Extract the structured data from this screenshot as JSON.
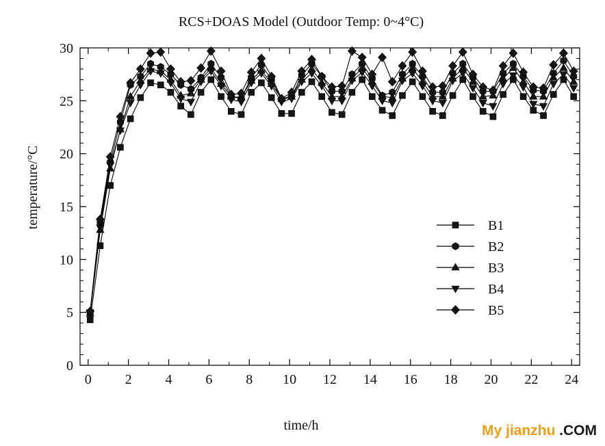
{
  "chart_data": {
    "type": "line",
    "title": "RCS+DOAS Model (Outdoor Temp: 0~4°C)",
    "xlabel": "time/h",
    "ylabel": "temperature/°C",
    "xlim": [
      -0.4,
      24.4
    ],
    "ylim": [
      0,
      30
    ],
    "xticks": [
      0,
      2,
      4,
      6,
      8,
      10,
      12,
      14,
      16,
      18,
      20,
      22,
      24
    ],
    "yticks": [
      0,
      5,
      10,
      15,
      20,
      25,
      30
    ],
    "legend_position": "center-right",
    "x": [
      0.1,
      0.6,
      1.1,
      1.6,
      2.1,
      2.6,
      3.1,
      3.6,
      4.1,
      4.6,
      5.1,
      5.6,
      6.1,
      6.6,
      7.1,
      7.6,
      8.1,
      8.6,
      9.1,
      9.6,
      10.1,
      10.6,
      11.1,
      11.6,
      12.1,
      12.6,
      13.1,
      13.6,
      14.1,
      14.6,
      15.1,
      15.6,
      16.1,
      16.6,
      17.1,
      17.6,
      18.1,
      18.6,
      19.1,
      19.6,
      20.1,
      20.6,
      21.1,
      21.6,
      22.1,
      22.6,
      23.1,
      23.6,
      24.1
    ],
    "series": [
      {
        "name": "B1",
        "marker": "square",
        "values": [
          4.3,
          11.3,
          17.0,
          20.6,
          23.3,
          25.3,
          26.7,
          26.5,
          25.8,
          24.5,
          23.7,
          25.8,
          27.0,
          25.4,
          24.0,
          23.7,
          25.8,
          26.7,
          25.3,
          23.8,
          23.8,
          25.8,
          26.8,
          25.4,
          23.9,
          23.7,
          25.8,
          27.0,
          25.4,
          24.1,
          23.6,
          25.5,
          26.8,
          25.4,
          24.0,
          23.6,
          25.5,
          27.0,
          25.4,
          24.0,
          23.5,
          25.6,
          27.0,
          25.4,
          24.1,
          23.6,
          25.6,
          27.0,
          25.4
        ]
      },
      {
        "name": "B2",
        "marker": "hexagon",
        "values": [
          5.0,
          13.5,
          19.2,
          23.0,
          26.5,
          27.3,
          28.5,
          28.2,
          27.5,
          26.5,
          26.1,
          27.2,
          28.5,
          27.2,
          25.4,
          25.2,
          27.2,
          28.4,
          27.0,
          25.1,
          25.4,
          27.4,
          28.5,
          27.3,
          25.9,
          25.9,
          27.5,
          28.5,
          27.1,
          25.5,
          25.8,
          27.5,
          28.5,
          27.3,
          25.8,
          25.8,
          27.6,
          28.5,
          27.2,
          25.9,
          25.9,
          27.6,
          28.5,
          27.3,
          26.0,
          25.9,
          27.6,
          28.8,
          27.3
        ]
      },
      {
        "name": "B3",
        "marker": "triangle-up",
        "values": [
          4.9,
          12.8,
          18.6,
          22.3,
          25.4,
          26.9,
          28.0,
          27.8,
          27.0,
          25.5,
          25.7,
          27.0,
          28.1,
          26.6,
          25.4,
          25.3,
          26.9,
          27.9,
          26.6,
          25.2,
          25.4,
          27.0,
          28.0,
          26.7,
          25.4,
          25.4,
          27.1,
          28.1,
          26.8,
          25.4,
          25.3,
          27.1,
          28.1,
          26.8,
          25.4,
          25.4,
          27.1,
          28.1,
          26.8,
          25.4,
          25.5,
          27.1,
          28.1,
          26.8,
          25.4,
          25.4,
          27.2,
          28.1,
          26.8
        ]
      },
      {
        "name": "B4",
        "marker": "triangle-down",
        "values": [
          5.0,
          13.0,
          18.9,
          22.2,
          24.8,
          26.5,
          27.8,
          27.6,
          26.7,
          25.2,
          24.9,
          26.8,
          27.8,
          26.4,
          25.1,
          24.9,
          26.7,
          27.6,
          26.4,
          24.9,
          25.2,
          26.8,
          27.6,
          26.4,
          25.0,
          25.0,
          26.9,
          27.7,
          26.4,
          25.0,
          24.8,
          26.9,
          27.6,
          26.4,
          25.0,
          24.8,
          26.9,
          27.6,
          26.2,
          24.8,
          24.5,
          26.6,
          27.4,
          26.3,
          24.7,
          24.5,
          26.6,
          27.5,
          26.2
        ]
      },
      {
        "name": "B5",
        "marker": "diamond",
        "values": [
          5.1,
          13.8,
          19.7,
          23.5,
          26.7,
          28.0,
          29.5,
          29.6,
          28.0,
          26.8,
          26.9,
          28.1,
          29.7,
          27.8,
          25.6,
          25.7,
          27.7,
          29.0,
          27.3,
          25.2,
          25.8,
          27.8,
          28.9,
          27.3,
          26.3,
          26.4,
          29.7,
          29.1,
          27.5,
          29.1,
          26.8,
          28.3,
          29.6,
          27.8,
          26.3,
          26.4,
          28.3,
          29.6,
          27.5,
          26.3,
          26.0,
          28.3,
          29.5,
          27.7,
          26.3,
          26.2,
          28.4,
          29.5,
          27.8
        ]
      }
    ]
  },
  "watermark": {
    "part1": "My jianzhu",
    "part2": " .COM",
    "color1": "#f39c1a",
    "color2": "#1a1a1a"
  }
}
